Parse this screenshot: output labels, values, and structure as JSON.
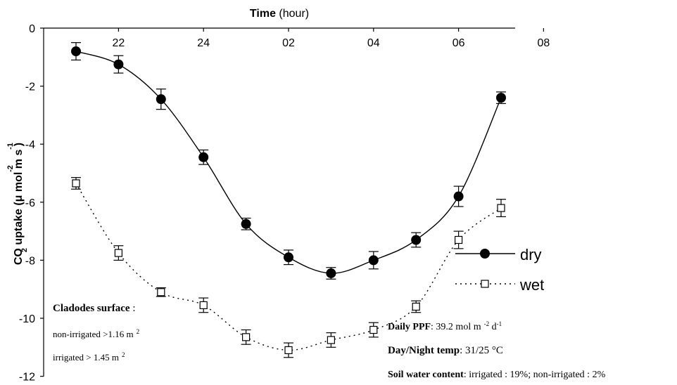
{
  "chart_data": {
    "type": "line",
    "title": "",
    "xlabel": {
      "bold": "Time",
      "normal": " (hour)"
    },
    "ylabel": {
      "main": "CO  uptake (μ mol m  s )",
      "sub2": "2",
      "sup_m": "-2",
      "sup_s": "-1"
    },
    "x_ticks": [
      "22",
      "24",
      "02",
      "04",
      "06",
      "08"
    ],
    "y_ticks": [
      "0",
      "-2",
      "-4",
      "-6",
      "-8",
      "-10",
      "-12"
    ],
    "ylim": [
      -12,
      0
    ],
    "x_hours": [
      21,
      22,
      23,
      24,
      25,
      26,
      27,
      28,
      29,
      30,
      31
    ],
    "series": [
      {
        "name": "dry",
        "style": "solid",
        "marker": "filled-circle",
        "values": [
          -0.8,
          -1.25,
          -2.45,
          -4.45,
          -6.75,
          -7.9,
          -8.45,
          -8.0,
          -7.3,
          -5.8,
          -2.4
        ],
        "errors": [
          0.3,
          0.3,
          0.35,
          0.25,
          0.2,
          0.25,
          0.2,
          0.3,
          0.25,
          0.35,
          0.2
        ]
      },
      {
        "name": "wet",
        "style": "dotted",
        "marker": "open-square",
        "values": [
          -5.35,
          -7.75,
          -9.1,
          -9.55,
          -10.65,
          -11.1,
          -10.75,
          -10.4,
          -9.6,
          -7.3,
          -6.2
        ],
        "errors": [
          0.2,
          0.25,
          0.15,
          0.25,
          0.25,
          0.25,
          0.25,
          0.25,
          0.2,
          0.3,
          0.3
        ]
      }
    ],
    "legend": {
      "placement": "right",
      "labels": [
        "dry",
        "wet"
      ]
    },
    "annotations": {
      "cladodes_title": "Cladodes surface",
      "cladodes_colon": " :",
      "non_irrigated": "non-irrigated >1.16 m",
      "non_irrigated_sup": "2",
      "irrigated": "irrigated > 1.45 m",
      "irrigated_sup": "2",
      "ppf_label": "Daily PPF",
      "ppf_value": ": 39.2 mol m",
      "ppf_sup1": "-2",
      "ppf_mid": " d",
      "ppf_sup2": "-1",
      "temp_label": "Day/Night temp",
      "temp_value": ": 31/25 °C",
      "soil_label": "Soil water content",
      "soil_value": ": irrigated : 19%; non-irrigated : 2%"
    }
  }
}
